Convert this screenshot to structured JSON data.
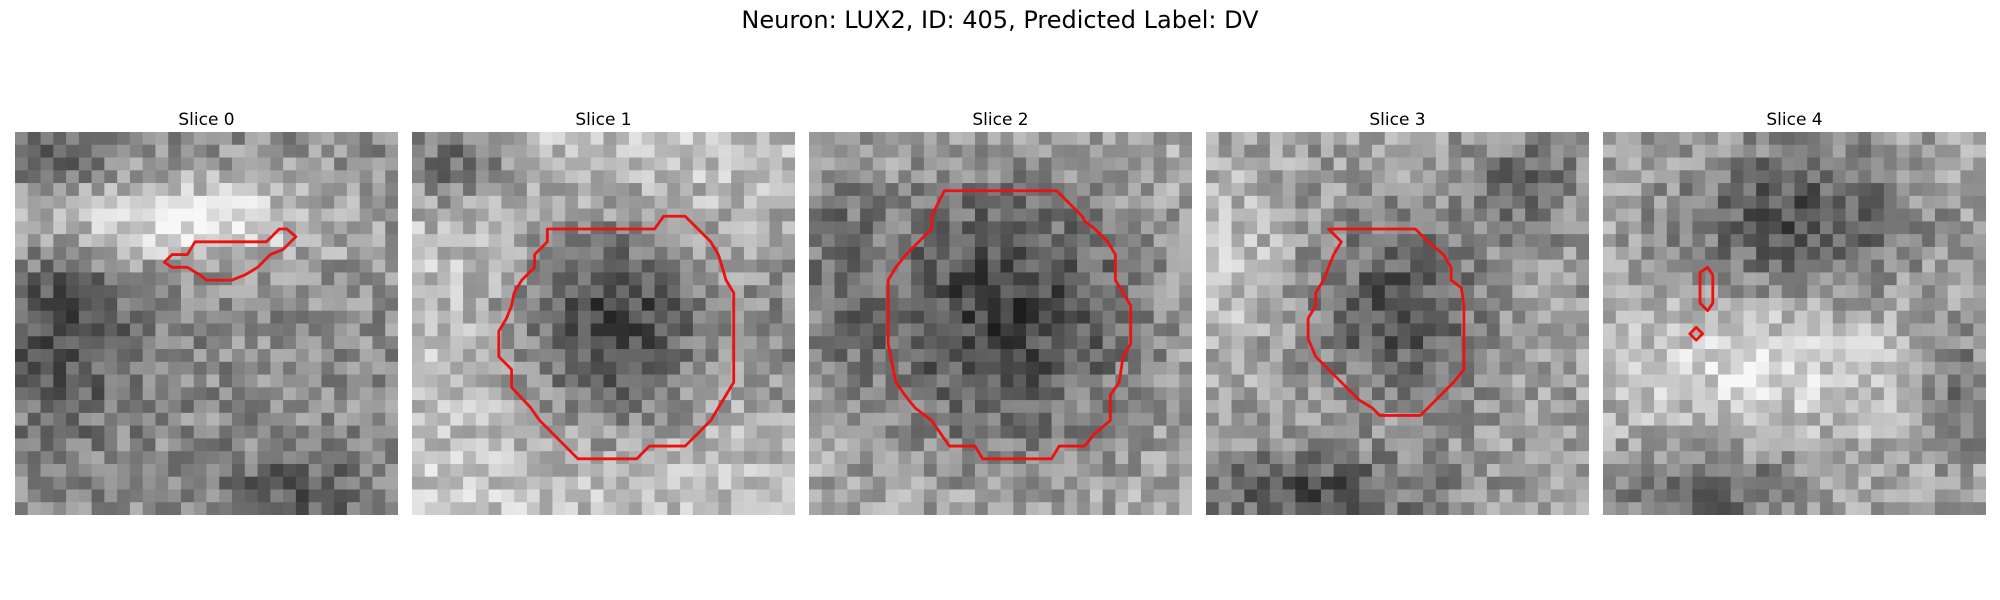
{
  "figure": {
    "title": "Neuron: LUX2, ID: 405, Predicted Label: DV"
  },
  "panels": [
    {
      "title": "Slice 0"
    },
    {
      "title": "Slice 1"
    },
    {
      "title": "Slice 2"
    },
    {
      "title": "Slice 3"
    },
    {
      "title": "Slice 4"
    }
  ],
  "colors": {
    "contour": "#ee1111"
  }
}
